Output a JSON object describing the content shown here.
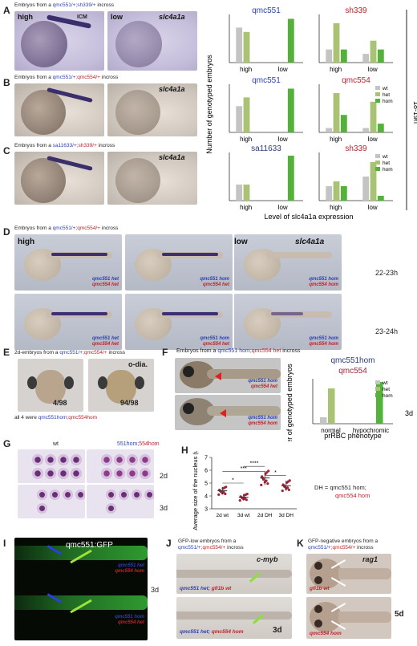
{
  "panel_letters": [
    "A",
    "B",
    "C",
    "D",
    "E",
    "F",
    "G",
    "H",
    "I",
    "J",
    "K"
  ],
  "panelA": {
    "caption_prefix": "Embryos from a ",
    "caption_geno": "qmc551/+;sh339/+",
    "caption_suffix": " incross",
    "img1_label": "high",
    "img2_label": "low",
    "gene": "slc4a1a",
    "icm_label": "ICM"
  },
  "panelB": {
    "caption_prefix": "Embryos from a ",
    "caption_geno1": "qmc551/+",
    "caption_geno2": ";qmc554/+",
    "caption_suffix": " incross",
    "gene": "slc4a1a"
  },
  "panelC": {
    "caption_prefix": "Embryos from a ",
    "caption_geno1": "sa11633/+",
    "caption_geno2": ";sh339/+",
    "caption_suffix": " incross",
    "gene": "slc4a1a"
  },
  "bar_ylabel": "Number of genotyped embryos",
  "bar_xlabel": "Level of slc4a1a expression",
  "time_bracket_label": "18-19h",
  "legend": [
    "wt",
    "het",
    "hom"
  ],
  "colors": {
    "wt": "#c4c4c4",
    "het": "#a9c273",
    "hom": "#54b23a",
    "blue": "#2b3fb3",
    "red": "#c0222a"
  },
  "chart_data": [
    {
      "type": "bar",
      "title": "qmc551",
      "categories": [
        "high",
        "low"
      ],
      "series": [
        {
          "name": "wt",
          "values": [
            8,
            0
          ]
        },
        {
          "name": "het",
          "values": [
            7,
            0
          ]
        },
        {
          "name": "hom",
          "values": [
            0,
            10
          ]
        }
      ],
      "ylim": [
        0,
        11
      ]
    },
    {
      "type": "bar",
      "title": "sh339",
      "categories": [
        "high",
        "low"
      ],
      "series": [
        {
          "name": "wt",
          "values": [
            3,
            2
          ]
        },
        {
          "name": "het",
          "values": [
            9,
            5
          ]
        },
        {
          "name": "hom",
          "values": [
            3,
            3
          ]
        }
      ],
      "ylim": [
        0,
        11
      ]
    },
    {
      "type": "bar",
      "title": "qmc551",
      "categories": [
        "high",
        "low"
      ],
      "series": [
        {
          "name": "wt",
          "values": [
            6,
            0
          ]
        },
        {
          "name": "het",
          "values": [
            8,
            0
          ]
        },
        {
          "name": "hom",
          "values": [
            0,
            10
          ]
        }
      ],
      "ylim": [
        0,
        11
      ]
    },
    {
      "type": "bar",
      "title": "qmc554",
      "categories": [
        "high",
        "low"
      ],
      "series": [
        {
          "name": "wt",
          "values": [
            1,
            1
          ]
        },
        {
          "name": "het",
          "values": [
            9,
            7
          ]
        },
        {
          "name": "hom",
          "values": [
            4,
            2
          ]
        }
      ],
      "ylim": [
        0,
        11
      ]
    },
    {
      "type": "bar",
      "title": "sa11633",
      "categories": [
        "high",
        "low"
      ],
      "series": [
        {
          "name": "wt",
          "values": [
            5,
            0
          ]
        },
        {
          "name": "het",
          "values": [
            5,
            0
          ]
        },
        {
          "name": "hom",
          "values": [
            0,
            14
          ]
        }
      ],
      "ylim": [
        0,
        15
      ]
    },
    {
      "type": "bar",
      "title": "sh339",
      "categories": [
        "high",
        "low"
      ],
      "series": [
        {
          "name": "wt",
          "values": [
            3,
            5
          ]
        },
        {
          "name": "het",
          "values": [
            4,
            8
          ]
        },
        {
          "name": "hom",
          "values": [
            3,
            1
          ]
        }
      ],
      "ylim": [
        0,
        10
      ]
    },
    {
      "type": "bar",
      "title": "qmc551hom qmc554",
      "xlabel": "prRBC phenotype",
      "categories": [
        "normal",
        "hypochromic"
      ],
      "series": [
        {
          "name": "wt",
          "values": [
            2,
            0
          ]
        },
        {
          "name": "het",
          "values": [
            11,
            0
          ]
        },
        {
          "name": "hom",
          "values": [
            0,
            13
          ]
        }
      ],
      "ylim": [
        0,
        14
      ]
    },
    {
      "type": "scatter",
      "ylabel": "Average size of the nucleus (um)",
      "categories": [
        "2d wt",
        "3d wt",
        "2d DH",
        "3d DH"
      ],
      "means": [
        4.4,
        3.9,
        5.4,
        4.8
      ],
      "ylim": [
        3,
        7
      ],
      "yticks": [
        3,
        4,
        5,
        6,
        7
      ],
      "significance": [
        "*",
        "***",
        "****",
        "*"
      ]
    }
  ],
  "panelD": {
    "caption_prefix": "Embryos from a ",
    "caption_geno1": "qmc551/+",
    "caption_geno2": ";qmc554/+",
    "caption_suffix": " incross",
    "row1_labels": [
      "high",
      "low"
    ],
    "gene": "slc4a1a",
    "time1": "22-23h",
    "time2": "23-24h",
    "genos": [
      [
        "qmc551 het",
        "qmc554 het"
      ],
      [
        "qmc551 hom",
        "qmc554 het"
      ],
      [
        "qmc551 hom",
        "qmc554 hom"
      ],
      [
        "qmc551 het",
        "qmc554 het"
      ],
      [
        "qmc551 hom",
        "qmc554 het"
      ],
      [
        "qmc551 hom",
        "qmc554 hom"
      ]
    ]
  },
  "panelE": {
    "caption_line1_prefix": "2d-embryos from a ",
    "caption_geno1": "qmc551/+",
    "caption_geno2": ";qmc554/+",
    "caption_suffix": " incross",
    "count1": "4/98",
    "count2": "94/98",
    "stain": "o-dia.",
    "footnote_prefix": "all 4 were ",
    "footnote_geno1": "qmc551hom",
    "footnote_geno2": ";qmc554hom"
  },
  "panelF": {
    "caption_prefix": "Embryos from a ",
    "caption_geno1": "qmc551 hom",
    "caption_geno2": ";qmc554 het",
    "caption_suffix": " incross",
    "img1_geno": [
      "qmc551 hom",
      "qmc554 het"
    ],
    "img2_geno": [
      "qmc551 hom",
      "qmc554 hom"
    ],
    "chart_title1": "qmc551hom",
    "chart_title2": "qmc554",
    "stage": "3d"
  },
  "panelG": {
    "col1": "wt",
    "col2_a": "551hom;",
    "col2_b": "554hom",
    "row1": "2d",
    "row2": "3d"
  },
  "panelH": {
    "dh_note1": "DH = qmc551 hom;",
    "dh_note2": "qmc554 hom",
    "xcats": [
      "2d wt",
      "3d wt",
      "2d DH",
      "3d DH"
    ]
  },
  "panelI": {
    "transgene": "qmc551:GFP",
    "geno1": [
      "qmc551 het",
      "qmc554 hom"
    ],
    "geno2": [
      "qmc551 hom",
      "qmc554 het"
    ],
    "stage": "3d"
  },
  "panelJ": {
    "caption_line1": "GFP-low embryos from a",
    "caption_geno1": "qmc551/+",
    "caption_geno2": ";qmc554/+",
    "caption_suffix": " incross",
    "gene": "c-myb",
    "geno1_a": "qmc551 het;",
    "geno1_b": "gfi1b wt",
    "geno2_a": "qmc551 het;",
    "geno2_b": "qmc554 hom",
    "stage": "3d"
  },
  "panelK": {
    "caption_line1": "GFP-negative embryos from a",
    "caption_geno1": "qmc551/+",
    "caption_geno2": ";qmc554/+",
    "caption_suffix": " incross",
    "gene": "rag1",
    "geno1": "gfi1b wt",
    "geno2": "qmc554 hom",
    "stage": "5d"
  }
}
